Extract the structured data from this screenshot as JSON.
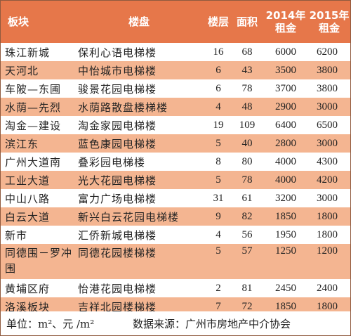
{
  "headers": {
    "area": "板块",
    "name": "楼盘",
    "floor": "楼层",
    "size": "面积",
    "rent2014": "2014年租金",
    "rent2015": "2015年租金"
  },
  "rows": [
    {
      "area": "珠江新城",
      "name": "保利心语电梯楼",
      "floor": "16",
      "size": "68",
      "r2014": "6000",
      "r2015": "6200"
    },
    {
      "area": "天河北",
      "name": "中怡城市电梯楼",
      "floor": "6",
      "size": "43",
      "r2014": "3500",
      "r2015": "3800"
    },
    {
      "area": "车陂—东圃",
      "name": "骏景花园电梯楼",
      "floor": "6",
      "size": "78",
      "r2014": "3700",
      "r2015": "3800"
    },
    {
      "area": "水荫—先烈",
      "name": "水荫路散盘楼梯楼",
      "floor": "4",
      "size": "48",
      "r2014": "2900",
      "r2015": "3000"
    },
    {
      "area": "淘金—建设",
      "name": "淘金家园电梯楼",
      "floor": "19",
      "size": "109",
      "r2014": "6400",
      "r2015": "6500"
    },
    {
      "area": "滨江东",
      "name": "蓝色康园电梯楼",
      "floor": "5",
      "size": "40",
      "r2014": "2800",
      "r2015": "3000"
    },
    {
      "area": "广州大道南",
      "name": "叠彩园电梯楼",
      "floor": "8",
      "size": "80",
      "r2014": "4000",
      "r2015": "4300"
    },
    {
      "area": "工业大道",
      "name": "光大花园电梯楼",
      "floor": "5",
      "size": "78",
      "r2014": "4000",
      "r2015": "4200"
    },
    {
      "area": "中山八路",
      "name": "富力广场电梯楼",
      "floor": "31",
      "size": "61",
      "r2014": "3200",
      "r2015": "3000"
    },
    {
      "area": "白云大道",
      "name": "新兴白云花园电梯楼",
      "floor": "9",
      "size": "82",
      "r2014": "1850",
      "r2015": "1800"
    },
    {
      "area": "新市",
      "name": "汇侨新城电梯楼",
      "floor": "4",
      "size": "56",
      "r2014": "1950",
      "r2015": "1800"
    },
    {
      "area": "同德围－罗冲围",
      "name": "同德花园楼梯楼",
      "floor": "5",
      "size": "57",
      "r2014": "1250",
      "r2015": "1200"
    },
    {
      "area": "黄埔区府",
      "name": "怡港花园电梯楼",
      "floor": "2",
      "size": "81",
      "r2014": "2450",
      "r2015": "2400"
    },
    {
      "area": "洛溪板块",
      "name": "吉祥北园楼梯楼",
      "floor": "7",
      "size": "72",
      "r2014": "1850",
      "r2015": "1800"
    }
  ],
  "footer": {
    "unit": "单位：m²、元 /m²",
    "source": "数据来源：广州市房地产中介协会"
  }
}
